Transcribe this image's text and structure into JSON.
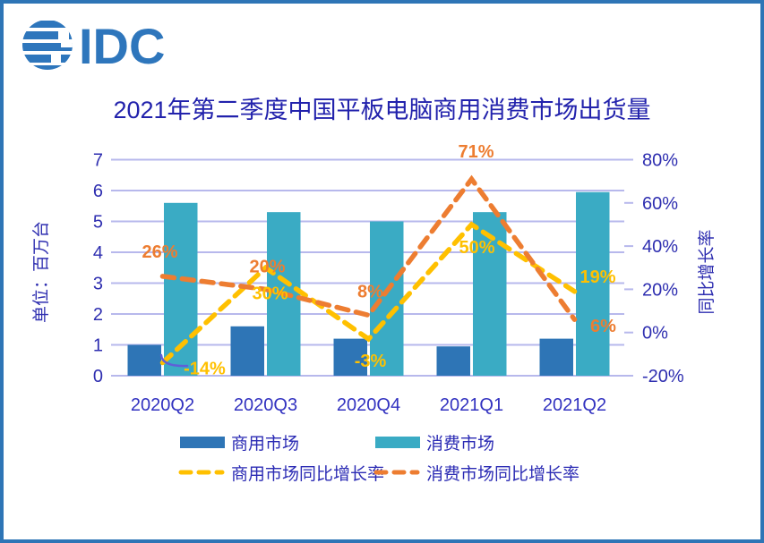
{
  "logo": {
    "text": "IDC"
  },
  "chart_data": {
    "type": "combo-bar-line",
    "title": "2021年第二季度中国平板电脑商用消费市场出货量",
    "categories": [
      "2020Q2",
      "2020Q3",
      "2020Q4",
      "2021Q1",
      "2021Q2"
    ],
    "bar_series": [
      {
        "name": "商用市场",
        "values": [
          1.0,
          1.6,
          1.2,
          0.95,
          1.2
        ],
        "color": "#2E75B6"
      },
      {
        "name": "消费市场",
        "values": [
          5.6,
          5.3,
          5.0,
          5.3,
          5.95
        ],
        "color": "#3AABC4"
      }
    ],
    "line_series": [
      {
        "name": "商用市场同比增长率",
        "values_pct": [
          -14,
          30,
          -3,
          50,
          19
        ],
        "labels": [
          "-14%",
          "30%",
          "-3%",
          "50%",
          "19%"
        ],
        "color": "#FFC000"
      },
      {
        "name": "消费市场同比增长率",
        "values_pct": [
          26,
          20,
          8,
          71,
          6
        ],
        "labels": [
          "26%",
          "20%",
          "8%",
          "71%",
          "6%"
        ],
        "color": "#ED7D31"
      }
    ],
    "left_axis": {
      "title": "单位：百万台",
      "ticks": [
        "0",
        "1",
        "2",
        "3",
        "4",
        "5",
        "6",
        "7"
      ],
      "min": 0,
      "max": 7
    },
    "right_axis": {
      "title": "同比增长率",
      "ticks": [
        "-20%",
        "0%",
        "20%",
        "40%",
        "60%",
        "80%"
      ],
      "min_pct": -20,
      "max_pct": 80
    },
    "grid": true,
    "legend_position": "bottom"
  },
  "colors": {
    "frame_border": "#2E75B6",
    "gridline": "#B7B8EC",
    "axis_text": "#2E2EB0",
    "x_tick_text": "#3232C0",
    "title_text": "#2222AC",
    "logo_blue": "#2E76BC",
    "annotation_swoosh": "#5F5FD8"
  }
}
